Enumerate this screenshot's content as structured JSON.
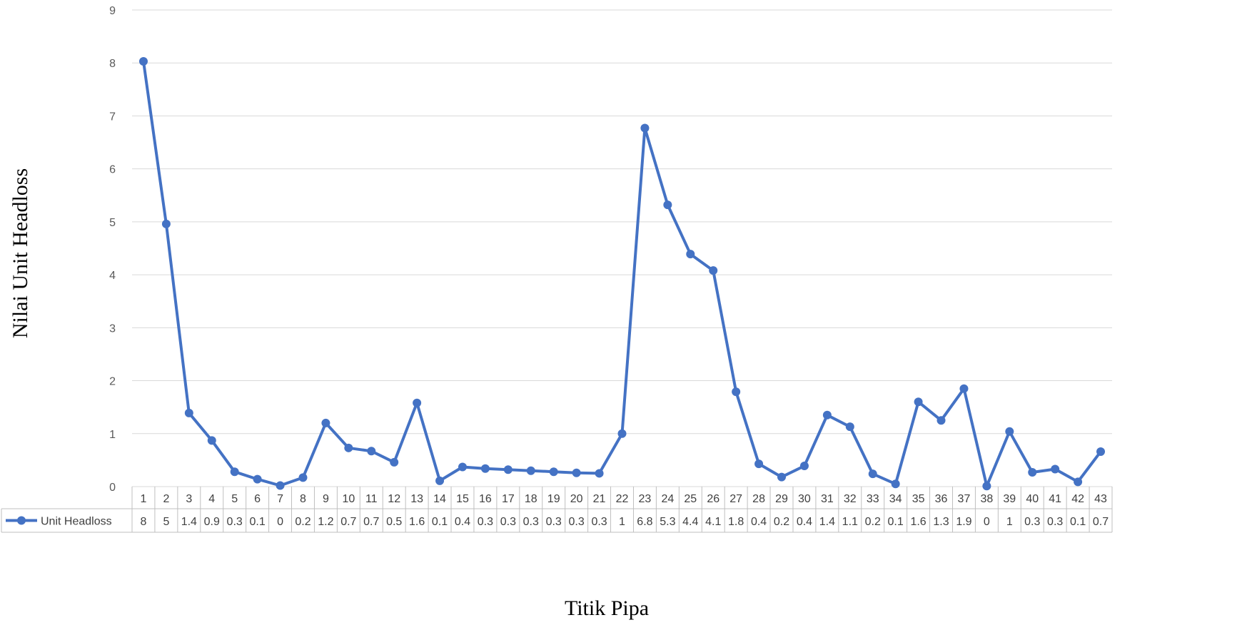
{
  "chart_data": {
    "type": "line",
    "title": "",
    "xlabel": "Titik Pipa",
    "ylabel": "Nilai Unit Headloss",
    "ylim": [
      0,
      9
    ],
    "yticks": [
      "0",
      "1",
      "2",
      "3",
      "4",
      "5",
      "6",
      "7",
      "8",
      "9"
    ],
    "grid": "horizontal",
    "legend": "data-table-left",
    "categories": [
      "1",
      "2",
      "3",
      "4",
      "5",
      "6",
      "7",
      "8",
      "9",
      "10",
      "11",
      "12",
      "13",
      "14",
      "15",
      "16",
      "17",
      "18",
      "19",
      "20",
      "21",
      "22",
      "23",
      "24",
      "25",
      "26",
      "27",
      "28",
      "29",
      "30",
      "31",
      "32",
      "33",
      "34",
      "35",
      "36",
      "37",
      "38",
      "39",
      "40",
      "41",
      "42",
      "43"
    ],
    "series": [
      {
        "name": "Unit Headloss",
        "color": "#4472C4",
        "values": [
          8.03,
          4.96,
          1.39,
          0.87,
          0.28,
          0.14,
          0.02,
          0.17,
          1.2,
          0.73,
          0.67,
          0.46,
          1.58,
          0.11,
          0.37,
          0.34,
          0.32,
          0.3,
          0.28,
          0.26,
          0.25,
          1.0,
          6.77,
          5.32,
          4.39,
          4.08,
          1.79,
          0.43,
          0.18,
          0.39,
          1.35,
          1.13,
          0.24,
          0.05,
          1.6,
          1.25,
          1.85,
          0.01,
          1.04,
          0.27,
          0.33,
          0.09,
          0.66
        ],
        "table_labels": [
          "8",
          "5",
          "1.4",
          "0.9",
          "0.3",
          "0.1",
          "0",
          "0.2",
          "1.2",
          "0.7",
          "0.7",
          "0.5",
          "1.6",
          "0.1",
          "0.4",
          "0.3",
          "0.3",
          "0.3",
          "0.3",
          "0.3",
          "0.3",
          "1",
          "6.8",
          "5.3",
          "4.4",
          "4.1",
          "1.8",
          "0.4",
          "0.2",
          "0.4",
          "1.4",
          "1.1",
          "0.2",
          "0.1",
          "1.6",
          "1.3",
          "1.9",
          "0",
          "1",
          "0.3",
          "0.3",
          "0.1",
          "0.7"
        ]
      }
    ]
  }
}
